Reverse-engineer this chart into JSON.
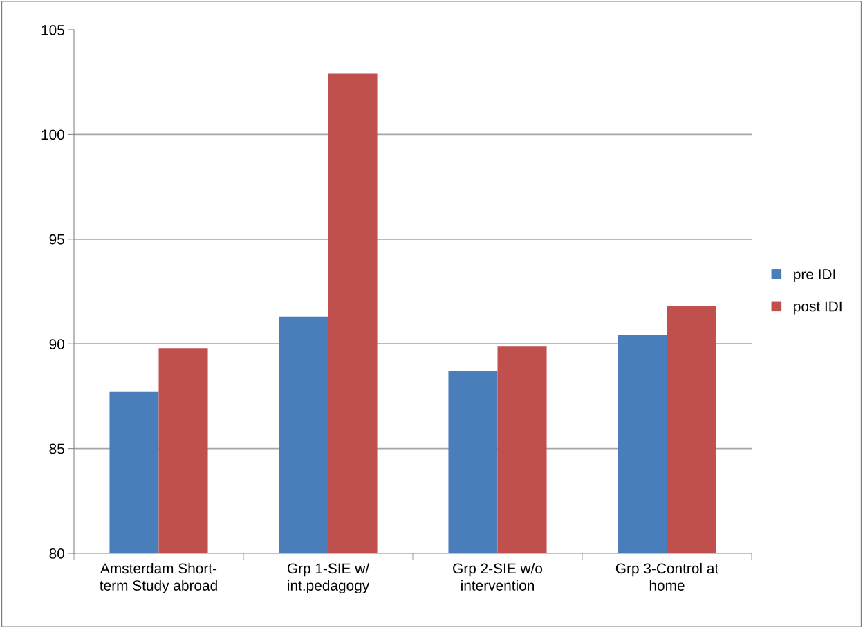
{
  "chart_data": {
    "type": "bar",
    "categories": [
      "Amsterdam Short-\nterm Study abroad",
      "Grp 1-SIE w/\nint.pedagogy",
      "Grp 2-SIE w/o\nintervention",
      "Grp 3-Control at\nhome"
    ],
    "series": [
      {
        "name": "pre IDI",
        "color": "#4a7ebb",
        "values": [
          87.7,
          91.3,
          88.7,
          90.4
        ]
      },
      {
        "name": "post IDI",
        "color": "#c0504d",
        "values": [
          89.8,
          102.9,
          89.9,
          91.8
        ]
      }
    ],
    "ylim": [
      80,
      105
    ],
    "yticks": [
      80,
      85,
      90,
      95,
      100,
      105
    ],
    "grid": "y",
    "legend": "right"
  }
}
